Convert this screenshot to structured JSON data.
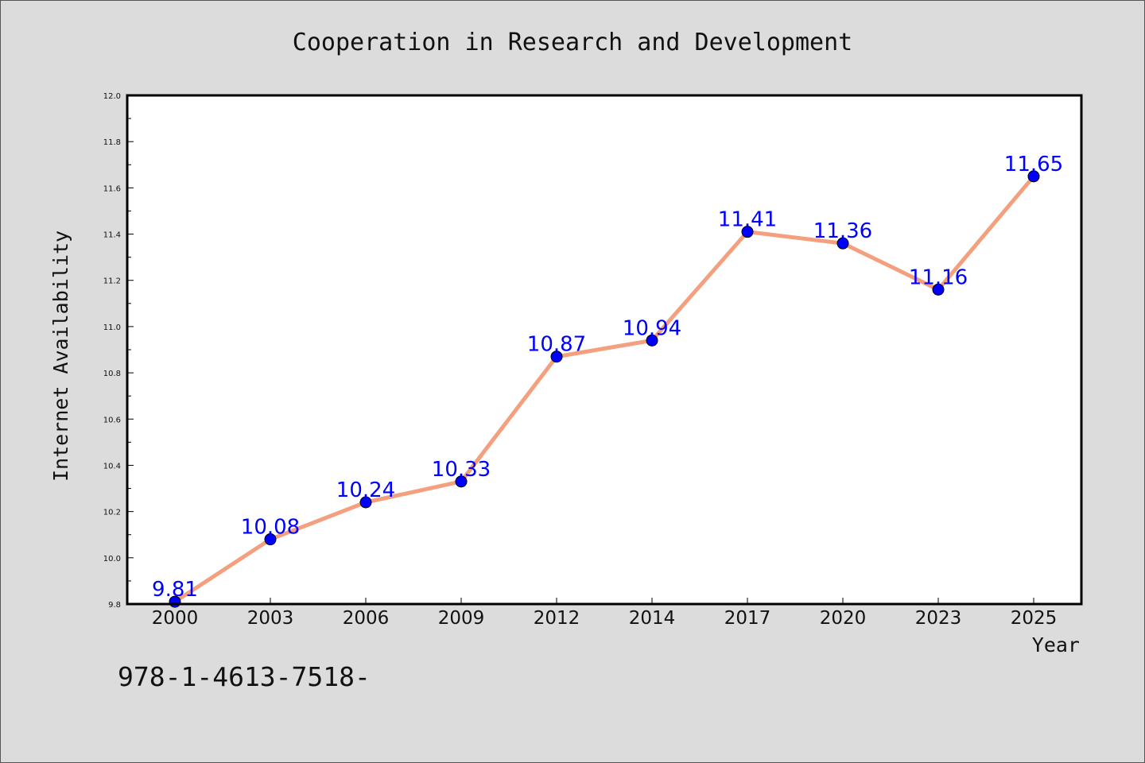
{
  "chart_data": {
    "type": "line",
    "title": "Cooperation in Research and Development",
    "xlabel": "Year",
    "ylabel": "Internet Availability",
    "categories": [
      "2000",
      "2003",
      "2006",
      "2009",
      "2012",
      "2014",
      "2017",
      "2020",
      "2023",
      "2025"
    ],
    "series": [
      {
        "values": [
          9.81,
          10.08,
          10.24,
          10.33,
          10.87,
          10.94,
          11.41,
          11.36,
          11.16,
          11.65
        ]
      }
    ],
    "data_labels": [
      "9.81",
      "10.08",
      "10.24",
      "10.33",
      "10.87",
      "10.94",
      "11.41",
      "11.36",
      "11.16",
      "11.65"
    ],
    "ylim": [
      9.8,
      12.0
    ],
    "yticks": [
      "9.8",
      "10.0",
      "10.2",
      "10.4",
      "10.6",
      "10.8",
      "11.0",
      "11.2",
      "11.4",
      "11.6",
      "11.8",
      "12.0"
    ],
    "grid": false,
    "colors": {
      "line": "#f4a07e",
      "marker": "#0000ff",
      "label": "#0000ff"
    }
  },
  "footer": {
    "isbn": "978-1-4613-7518-"
  }
}
